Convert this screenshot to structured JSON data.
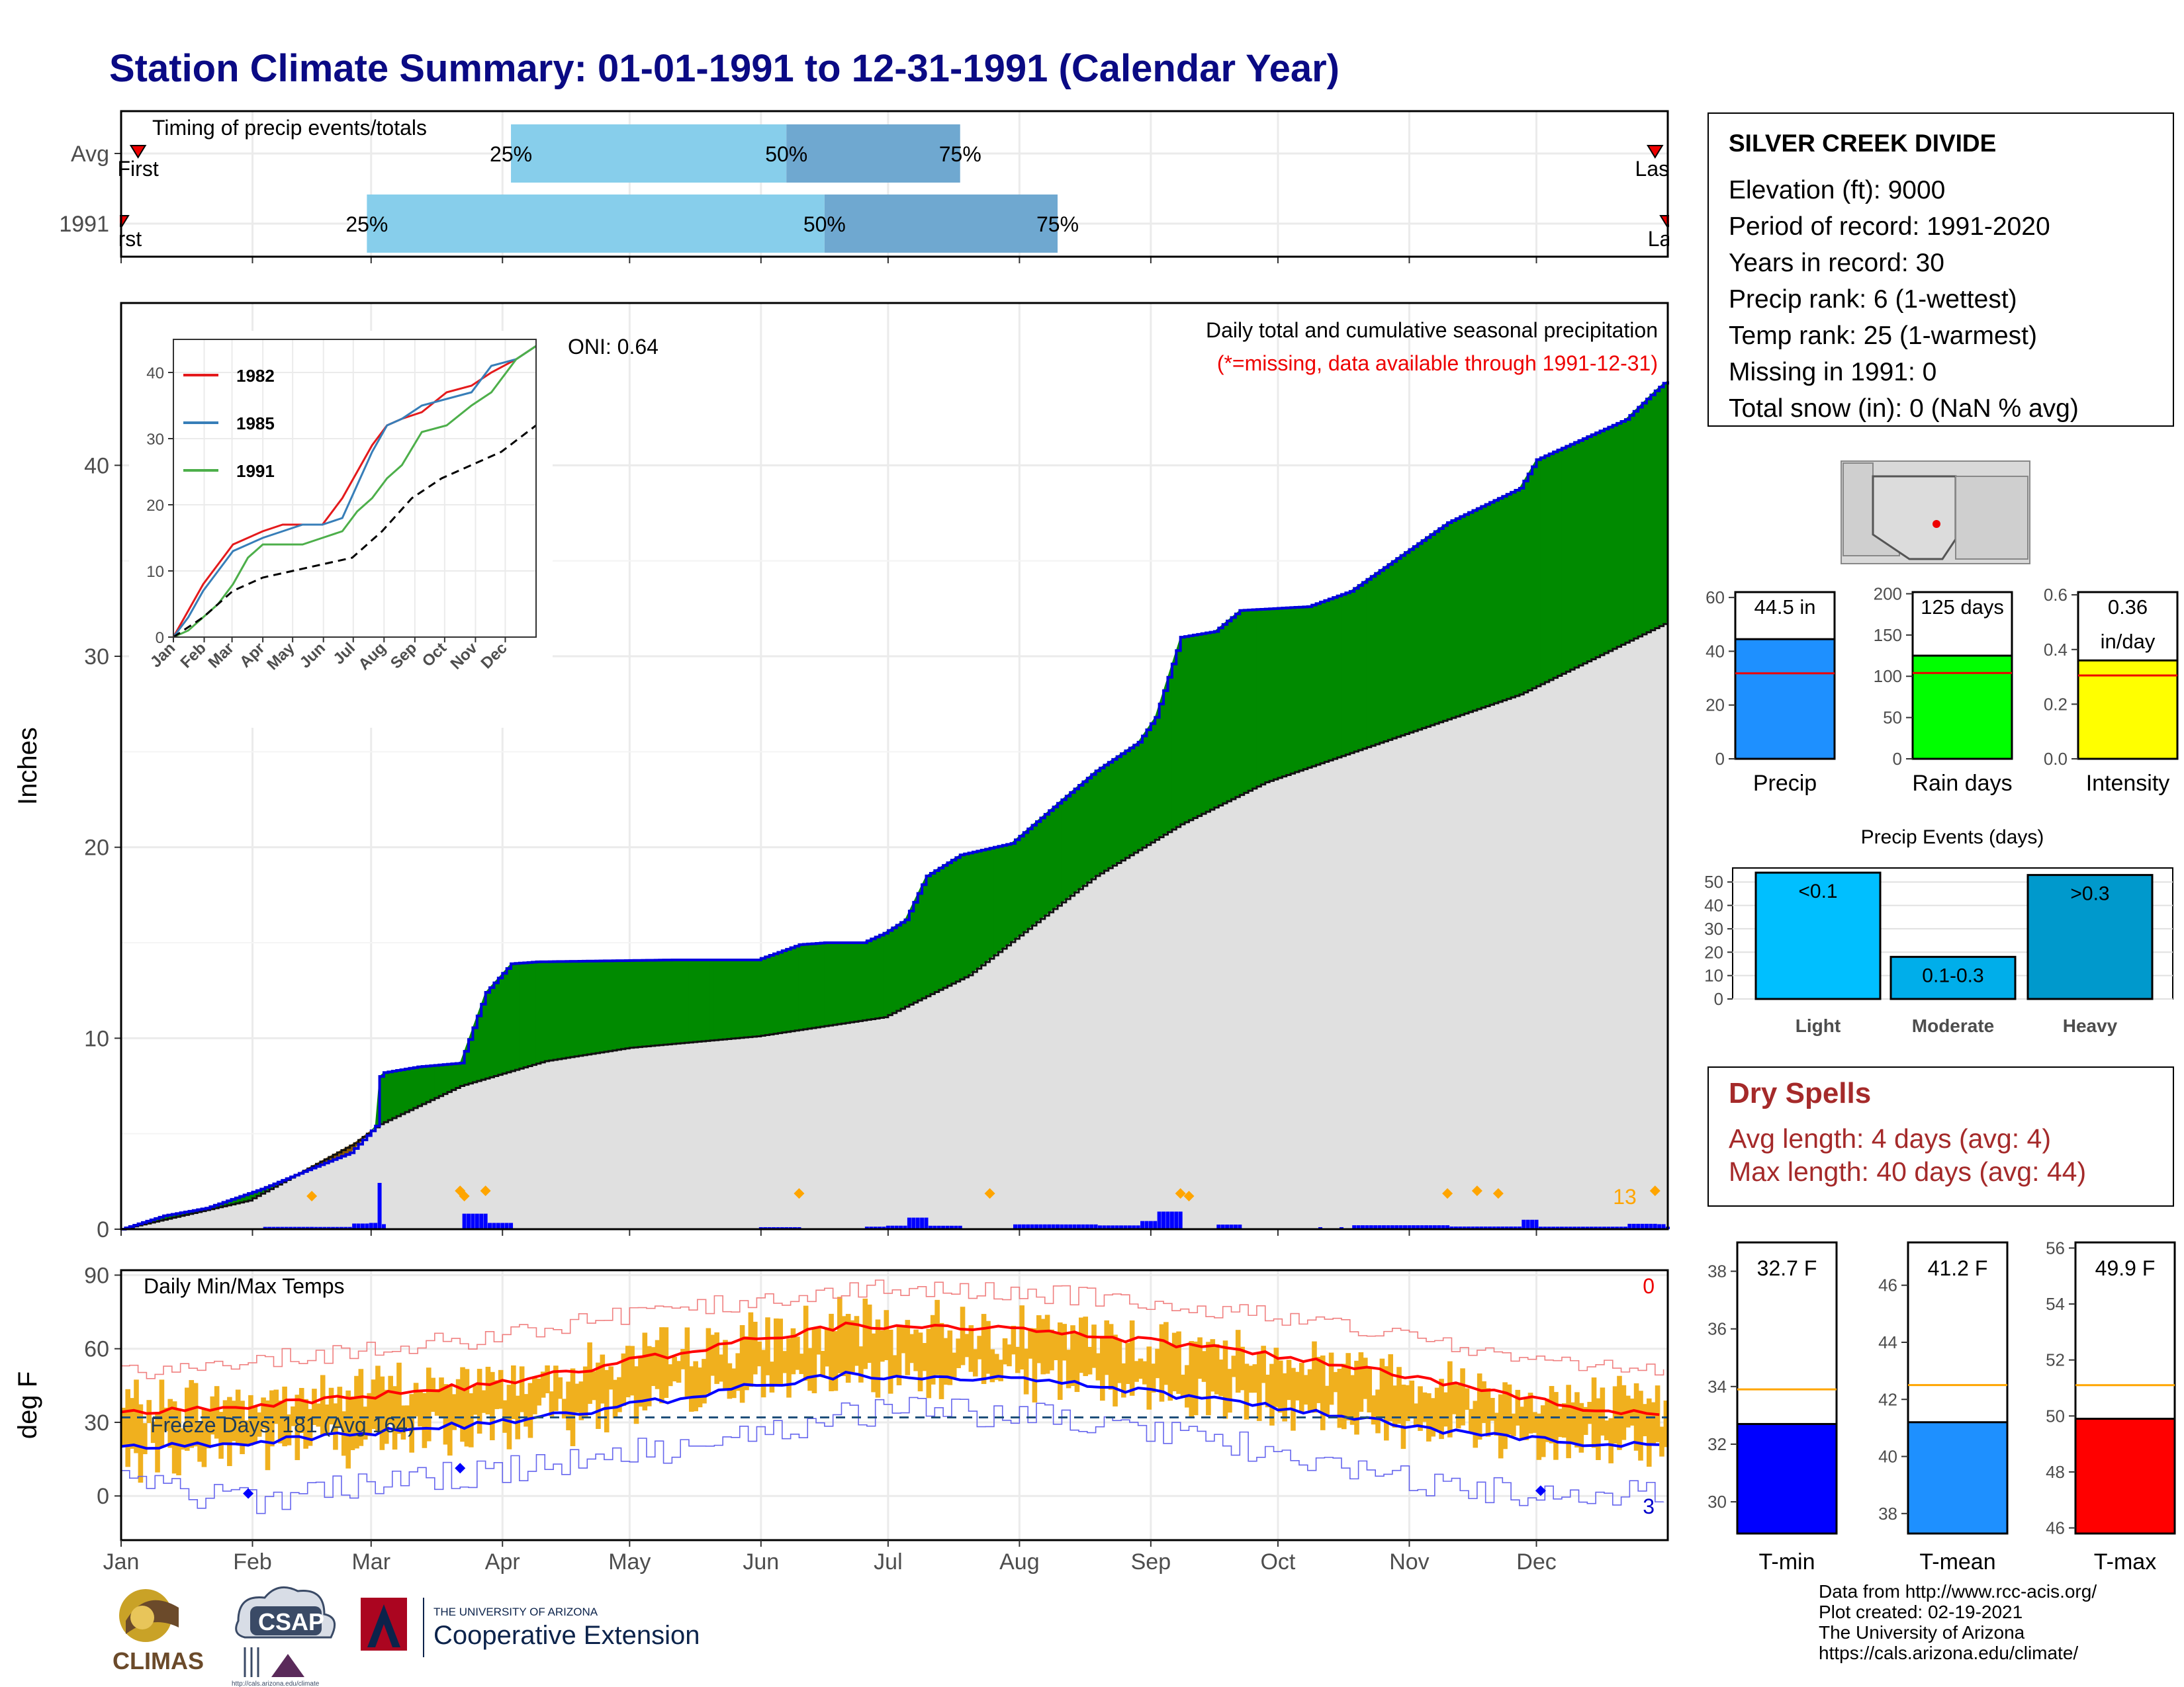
{
  "title": "Station Climate Summary: 01-01-1991 to 12-31-1991 (Calendar Year)",
  "months": [
    "Jan",
    "Feb",
    "Mar",
    "Apr",
    "May",
    "Jun",
    "Jul",
    "Aug",
    "Sep",
    "Oct",
    "Nov",
    "Dec"
  ],
  "timing_panel": {
    "label": "Timing of precip events/totals",
    "rows": [
      {
        "name": "Avg",
        "first_label": "First",
        "last_label": "Last",
        "first_day": 4,
        "p25_day": 92,
        "p50_day": 157,
        "p75_day": 198,
        "last_day": 362,
        "p25_label": "25%",
        "p50_label": "50%",
        "p75_label": "75%"
      },
      {
        "name": "1991",
        "first_label": "First",
        "last_label": "Last",
        "first_day": 0,
        "p25_day": 58,
        "p50_day": 166,
        "p75_day": 221,
        "last_day": 365,
        "p25_label": "25%",
        "p50_label": "50%",
        "p75_label": "75%"
      }
    ]
  },
  "precip_panel": {
    "ylabel": "Inches",
    "title_line1": "Daily total and cumulative seasonal precipitation",
    "title_line2": "(*=missing, data available through 1991-12-31)",
    "oni": "ONI: 0.64",
    "max_daily_label": "13",
    "y_ticks": [
      0,
      10,
      20,
      30,
      40
    ],
    "y_range": [
      0,
      48.5
    ],
    "colors": {
      "above": "#008a00",
      "below": "#8b5a00",
      "avg_fill": "#e0e0e0",
      "obs_line": "#0000dd",
      "bars": "#0000ff",
      "diamond": "#ffa500"
    }
  },
  "inset": {
    "years": [
      "1982",
      "1985",
      "1991"
    ],
    "colors": [
      "#e41a1c",
      "#377eb8",
      "#4daf4a"
    ],
    "y_ticks": [
      0,
      10,
      20,
      30,
      40
    ],
    "months": [
      "Jan",
      "Feb",
      "Mar",
      "Apr",
      "May",
      "Jun",
      "Jul",
      "Aug",
      "Sep",
      "Oct",
      "Nov",
      "Dec"
    ]
  },
  "temp_panel": {
    "ylabel": "deg F",
    "label": "Daily Min/Max Temps",
    "freeze_label": "Freeze Days: 181 (Avg 164)",
    "max_count": "0",
    "min_count": "3",
    "y_ticks": [
      0,
      30,
      60,
      90
    ],
    "y_range": [
      -18,
      92
    ]
  },
  "station": {
    "name": "SILVER CREEK DIVIDE",
    "lines": [
      "Elevation (ft): 9000",
      "Period of record: 1991-2020",
      "Years in record: 30",
      "Precip rank: 6 (1-wettest)",
      "Temp rank: 25 (1-warmest)",
      "Missing in 1991: 0",
      "Total snow (in): 0 (NaN % avg)"
    ]
  },
  "summary_bars": [
    {
      "name": "Precip",
      "label": "44.5 in",
      "value": 44.5,
      "avg": 31.8,
      "max": 62,
      "ticks": [
        0,
        20,
        40,
        60
      ],
      "color": "#1e90ff"
    },
    {
      "name": "Rain days",
      "label": "125 days",
      "value": 125,
      "avg": 104,
      "max": 202,
      "ticks": [
        0,
        50,
        100,
        150,
        200
      ],
      "color": "#00ff00"
    },
    {
      "name": "Intensity",
      "label_line1": "0.36",
      "label_line2": "in/day",
      "value": 0.36,
      "avg": 0.305,
      "max": 0.61,
      "ticks": [
        0.0,
        0.2,
        0.4,
        0.6
      ],
      "color": "#ffff00"
    }
  ],
  "precip_events": {
    "title": "Precip Events (days)",
    "ticks": [
      0,
      10,
      20,
      30,
      40,
      50
    ],
    "max": 56,
    "bars": [
      {
        "name": "Light",
        "label": "<0.1",
        "value": 54,
        "color": "#00bfff"
      },
      {
        "name": "Moderate",
        "label": "0.1-0.3",
        "value": 18,
        "color": "#00aeea"
      },
      {
        "name": "Heavy",
        "label": ">0.3",
        "value": 53,
        "color": "#0099cc"
      }
    ]
  },
  "dry_spells": {
    "title": "Dry Spells",
    "avg_line": "Avg length: 4 days (avg: 4)",
    "max_line": "Max length: 40 days (avg: 44)"
  },
  "temp_bars": [
    {
      "name": "T-min",
      "label": "32.7 F",
      "value": 32.7,
      "avg": 33.9,
      "min": 28.9,
      "max": 39.0,
      "ticks": [
        30,
        32,
        34,
        36,
        38
      ],
      "color": "#0000ff"
    },
    {
      "name": "T-mean",
      "label": "41.2 F",
      "value": 41.2,
      "avg": 42.5,
      "min": 37.3,
      "max": 47.5,
      "ticks": [
        38,
        40,
        42,
        44,
        46
      ],
      "color": "#1e90ff"
    },
    {
      "name": "T-max",
      "label": "49.9 F",
      "value": 49.9,
      "avg": 51.1,
      "min": 45.8,
      "max": 56.2,
      "ticks": [
        46,
        48,
        50,
        52,
        54,
        56
      ],
      "color": "#ff0000"
    }
  ],
  "credits": [
    "Data from http://www.rcc-acis.org/",
    "Plot created: 02-19-2021",
    "The University of Arizona",
    "https://cals.arizona.edu/climate/"
  ],
  "logos": {
    "climas": "CLIMAS",
    "csap": "CSAP",
    "csap_url": "http://cals.arizona.edu/climate",
    "ua_small": "THE UNIVERSITY OF ARIZONA",
    "ua_big": "Cooperative Extension"
  },
  "chart_data": [
    {
      "type": "area",
      "title": "Daily total and cumulative seasonal precipitation",
      "ylabel": "Inches",
      "ylim": [
        0,
        48.5
      ],
      "x_unit": "day of year",
      "series": [
        {
          "name": "1991",
          "x": [
            0,
            10,
            20,
            33,
            45,
            54,
            58,
            60,
            61,
            62,
            70,
            80,
            86,
            92,
            98,
            130,
            150,
            160,
            166,
            175,
            180,
            185,
            190,
            198,
            210,
            221,
            230,
            240,
            244,
            250,
            258,
            264,
            280,
            290,
            313,
            330,
            334,
            355,
            362,
            364,
            365
          ],
          "y": [
            0,
            0.7,
            1.1,
            2.1,
            3.2,
            4.0,
            4.9,
            5.4,
            8.0,
            8.2,
            8.5,
            8.7,
            12.4,
            13.9,
            14.0,
            14.1,
            14.1,
            14.9,
            15.0,
            15.0,
            15.5,
            16.2,
            18.5,
            19.6,
            20.2,
            22.3,
            24.0,
            25.5,
            26.8,
            31.0,
            31.3,
            32.4,
            32.6,
            33.4,
            37.0,
            38.8,
            40.3,
            42.4,
            43.9,
            44.3,
            44.4
          ]
        },
        {
          "name": "Avg",
          "x": [
            0,
            30,
            55,
            61,
            80,
            100,
            120,
            150,
            180,
            200,
            230,
            250,
            270,
            300,
            330,
            365
          ],
          "y": [
            0,
            1.5,
            4.5,
            5.5,
            7.5,
            8.8,
            9.5,
            10.1,
            11.1,
            13.3,
            18.5,
            21.2,
            23.4,
            25.7,
            28.0,
            31.8
          ]
        }
      ],
      "insets": [
        {
          "type": "line",
          "ylim": [
            0,
            45
          ],
          "series": [
            {
              "name": "1982",
              "x": [
                0,
                15,
                30,
                45,
                60,
                75,
                90,
                110,
                130,
                150,
                170,
                185,
                200,
                215,
                230,
                250,
                275,
                300,
                320,
                345,
                365
              ],
              "y": [
                0,
                4,
                8,
                11,
                14,
                15,
                16,
                17,
                17,
                17,
                21,
                25,
                29,
                32,
                33,
                34,
                37,
                38,
                40,
                42,
                44
              ]
            },
            {
              "name": "1985",
              "x": [
                0,
                15,
                30,
                45,
                60,
                75,
                90,
                110,
                130,
                150,
                170,
                185,
                200,
                215,
                230,
                250,
                275,
                300,
                320,
                345,
                365
              ],
              "y": [
                0,
                3,
                7,
                10,
                13,
                14,
                15,
                16,
                17,
                17,
                18,
                23,
                28,
                32,
                33,
                35,
                36,
                37,
                41,
                42,
                44
              ]
            },
            {
              "name": "1991",
              "x": [
                0,
                15,
                30,
                45,
                60,
                75,
                90,
                110,
                130,
                150,
                170,
                185,
                200,
                215,
                230,
                250,
                275,
                300,
                320,
                345,
                365
              ],
              "y": [
                0,
                1,
                3,
                5,
                8,
                12,
                14,
                14,
                14,
                15,
                16,
                19,
                21,
                24,
                26,
                31,
                32,
                35,
                37,
                42,
                44
              ]
            },
            {
              "name": "Avg",
              "x": [
                0,
                30,
                60,
                90,
                120,
                150,
                180,
                210,
                240,
                270,
                300,
                330,
                365
              ],
              "y": [
                0,
                3,
                7,
                9,
                10,
                11,
                12,
                16,
                21,
                24,
                26,
                28,
                32
              ]
            }
          ]
        }
      ]
    },
    {
      "type": "line",
      "title": "Daily Min/Max Temps",
      "ylabel": "deg F",
      "ylim": [
        -18,
        92
      ],
      "x_unit": "day of year",
      "series": [
        {
          "name": "Avg Tmax",
          "x": [
            0,
            30,
            60,
            90,
            120,
            150,
            170,
            190,
            220,
            250,
            280,
            310,
            340,
            365
          ],
          "y": [
            34,
            37,
            41,
            46,
            55,
            64,
            69,
            70,
            67,
            62,
            56,
            47,
            37,
            33
          ]
        },
        {
          "name": "Avg Tmin",
          "x": [
            0,
            30,
            60,
            90,
            120,
            150,
            170,
            190,
            220,
            250,
            280,
            310,
            340,
            365
          ],
          "y": [
            20,
            22,
            26,
            30,
            37,
            45,
            49,
            49,
            47,
            41,
            35,
            27,
            22,
            21
          ]
        },
        {
          "name": "Record high",
          "x": [
            0,
            30,
            60,
            90,
            120,
            150,
            170,
            190,
            220,
            250,
            280,
            310,
            340,
            365
          ],
          "y": [
            50,
            55,
            60,
            65,
            74,
            80,
            85,
            84,
            82,
            78,
            72,
            62,
            54,
            52
          ]
        },
        {
          "name": "Record low",
          "x": [
            0,
            30,
            60,
            90,
            120,
            150,
            170,
            190,
            220,
            250,
            280,
            310,
            340,
            365
          ],
          "y": [
            5,
            -2,
            5,
            10,
            17,
            25,
            33,
            35,
            33,
            25,
            15,
            5,
            -2,
            2
          ]
        },
        {
          "name": "Freezing line",
          "x": [
            0,
            365
          ],
          "y": [
            32,
            32
          ]
        }
      ]
    },
    {
      "type": "bar",
      "categories": [
        "Precip"
      ],
      "values": [
        44.5
      ],
      "ylim": [
        0,
        62
      ]
    },
    {
      "type": "bar",
      "categories": [
        "Rain days"
      ],
      "values": [
        125
      ],
      "ylim": [
        0,
        202
      ]
    },
    {
      "type": "bar",
      "categories": [
        "Intensity"
      ],
      "values": [
        0.36
      ],
      "ylim": [
        0,
        0.61
      ]
    },
    {
      "type": "bar",
      "title": "Precip Events (days)",
      "categories": [
        "Light",
        "Moderate",
        "Heavy"
      ],
      "values": [
        54,
        18,
        53
      ],
      "ylim": [
        0,
        56
      ]
    },
    {
      "type": "bar",
      "categories": [
        "T-min"
      ],
      "values": [
        32.7
      ],
      "ylim": [
        28.9,
        39.0
      ]
    },
    {
      "type": "bar",
      "categories": [
        "T-mean"
      ],
      "values": [
        41.2
      ],
      "ylim": [
        37.3,
        47.5
      ]
    },
    {
      "type": "bar",
      "categories": [
        "T-max"
      ],
      "values": [
        49.9
      ],
      "ylim": [
        45.8,
        56.2
      ]
    }
  ]
}
